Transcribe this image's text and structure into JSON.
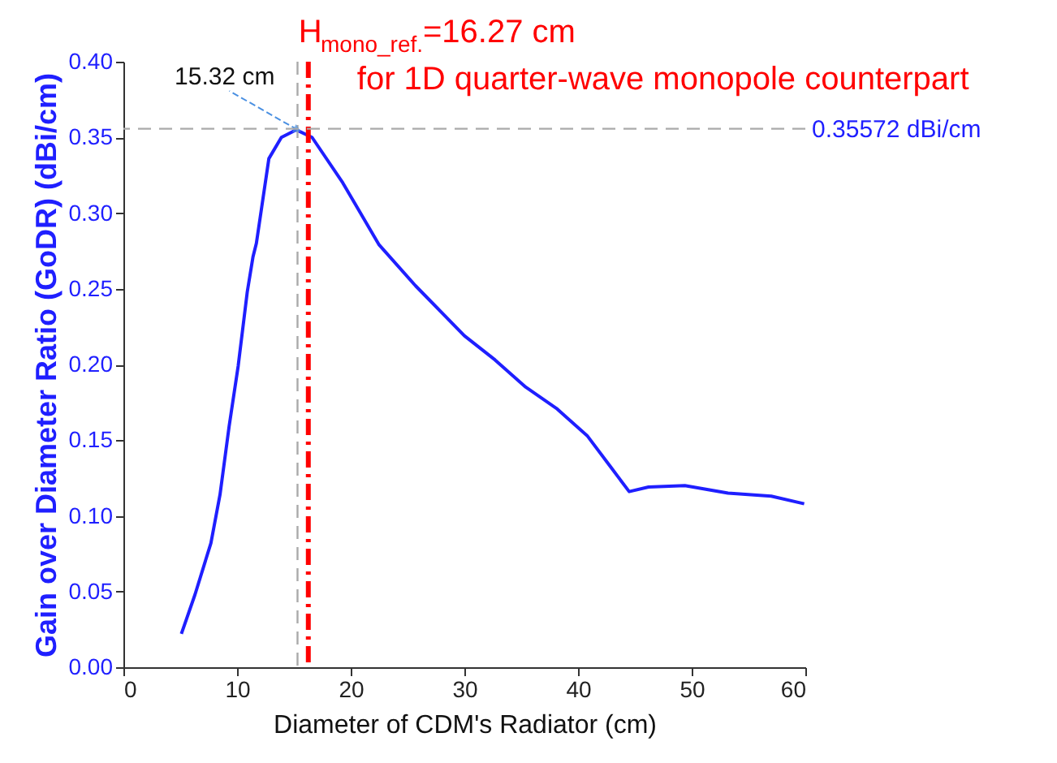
{
  "chart_data": {
    "type": "line",
    "xlabel": "Diameter of CDM's Radiator (cm)",
    "ylabel": "Gain over Diameter Ratio (GoDR) (dBi/cm)",
    "xlim": [
      0,
      60
    ],
    "xticks": [
      0,
      10,
      20,
      30,
      40,
      50,
      60
    ],
    "ylim": [
      0,
      0.4
    ],
    "yticks": [
      {
        "value": 0,
        "label": "0.00"
      },
      {
        "value": 0.05,
        "label": "0.05"
      },
      {
        "value": 0.1,
        "label": "0.10"
      },
      {
        "value": 0.15,
        "label": "0.15"
      },
      {
        "value": 0.2,
        "label": "0.20"
      },
      {
        "value": 0.25,
        "label": "0.25"
      },
      {
        "value": 0.3,
        "label": "0.30"
      },
      {
        "value": 0.35,
        "label": "0.35"
      },
      {
        "value": 0.4,
        "label": "0.40"
      }
    ],
    "grid": false,
    "marker": "none",
    "line_style": "solid",
    "series": [
      {
        "color": "#1f1fff",
        "x": [
          5.1,
          6.3,
          7.7,
          8.5,
          9.3,
          10.1,
          10.9,
          11.4,
          11.7,
          12.8,
          13.9,
          15.2,
          16.6,
          19.3,
          22.5,
          25.7,
          30.0,
          32.7,
          35.4,
          38.1,
          40.8,
          42.9,
          44.5,
          46.2,
          49.4,
          53.2,
          57.0,
          59.9
        ],
        "values": [
          0.022,
          0.048,
          0.082,
          0.114,
          0.159,
          0.199,
          0.248,
          0.271,
          0.28,
          0.336,
          0.35,
          0.355,
          0.35,
          0.32,
          0.279,
          0.252,
          0.219,
          0.203,
          0.185,
          0.171,
          0.153,
          0.132,
          0.116,
          0.119,
          0.12,
          0.115,
          0.113,
          0.108
        ]
      }
    ],
    "ref_lines": [
      {
        "axis": "x",
        "value": 15.32,
        "label": "15.32 cm",
        "color": "#aaaaaa",
        "line_style": "dashed"
      },
      {
        "axis": "x",
        "value": 16.27,
        "label": "H$_{mono_ref.}$=16.27 cm",
        "color": "#ff0000",
        "line_style": "dashdot"
      },
      {
        "axis": "y",
        "value": 0.35572,
        "label": "0.35572 dBi/cm",
        "color": "#aaaaaa",
        "line_style": "dashed"
      }
    ],
    "annotations": [
      "for 1D quarter-wave monopole counterpart"
    ]
  }
}
